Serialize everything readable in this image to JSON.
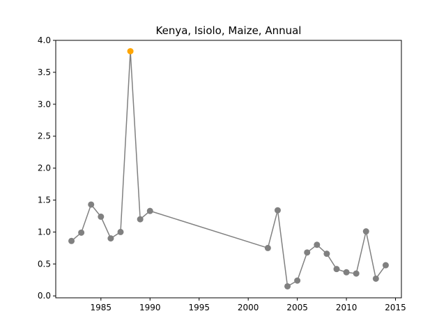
{
  "chart_data": {
    "type": "line",
    "title": "Kenya, Isiolo, Maize, Annual",
    "xlabel": "",
    "ylabel": "",
    "xlim": [
      1980.4,
      2015.6
    ],
    "ylim": [
      -0.03,
      4.0
    ],
    "xticks": [
      1985,
      1990,
      1995,
      2000,
      2005,
      2010,
      2015
    ],
    "yticks": [
      0.0,
      0.5,
      1.0,
      1.5,
      2.0,
      2.5,
      3.0,
      3.5,
      4.0
    ],
    "grid": false,
    "line_color": "#808080",
    "marker_color": "#808080",
    "highlight_color": "#ffa500",
    "highlight_index": 6,
    "series": [
      {
        "x": [
          1982,
          1983,
          1984,
          1985,
          1986,
          1987,
          1988,
          1989,
          1990,
          2002,
          2003,
          2004,
          2005,
          2006,
          2007,
          2008,
          2009,
          2010,
          2011,
          2012,
          2013,
          2014
        ],
        "y": [
          0.86,
          0.99,
          1.43,
          1.24,
          0.9,
          1.0,
          3.83,
          1.2,
          1.33,
          0.75,
          1.34,
          0.15,
          0.24,
          0.68,
          0.8,
          0.66,
          0.42,
          0.37,
          0.35,
          1.01,
          0.27,
          0.48
        ]
      }
    ]
  }
}
